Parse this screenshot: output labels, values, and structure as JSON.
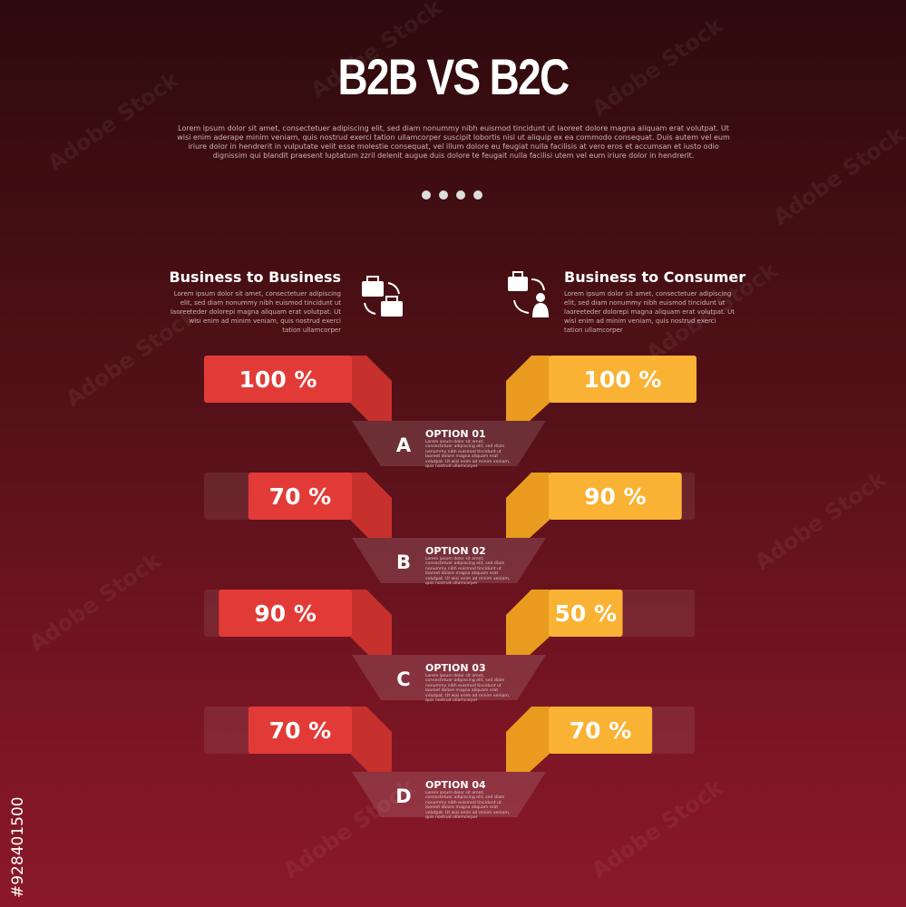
{
  "title": "B2B VS B2C",
  "description": "Lorem ipsum dolor sit amet, consectetuer adipiscing elit, sed diam nonummy nibh euismod tincidunt ut laoreet dolore magna aliquam erat volutpat. Ut wisi enim aderape minim veniam, quis nostrud exerci tation ullamcorper suscipit lobortis nisl ut aliquip ex ea commodo consequat. Duis autem vel eum iriure dolor in hendrerit in vulputate velit esse molestie consequat, vel illum dolore eu feugiat nulla facilisis at vero eros et accumsan et iusto odio dignissim qui blandit praesent luptatum zzril delenit augue duis dolore te feugait nulla facilisi utem vel eum iriure dolor in hendrerit.",
  "left": {
    "heading": "Business to Business",
    "text": "Lorem ipsum dolor sit amet, consectetuer adipiscing elit, sed diam nonummy nibh euismod tincidunt ut laoreeteder dolorepi magna aliquam erat volutpat. Ut wisi enim ad minim veniam, quis nostrud exerci tation ullamcorper"
  },
  "right": {
    "heading": "Business to Consumer",
    "text": "Lorem ipsum dolor sit amet, consectetuer adipiscing elit, sed diam nonummy nibh euismod tincidunt ut laoreeteder dolorepi magna aliquam erat volutpat. Ut wisi enim ad minim veniam, quis nostrud exerci tation ullamcorper"
  },
  "rows": [
    {
      "letter": "A",
      "option": "OPTION 01",
      "text": "Lorem ipsum dolor sit amet, consectetuer adipiscing elit, sed diam nonummy nibh euismod tincidunt ut laoreet dolore magna aliquam erat volutpat. Ut wisi enim ad minim veniam, quis nostrud ullamcorper",
      "left": {
        "value": 100,
        "label": "100 %"
      },
      "right": {
        "value": 100,
        "label": "100 %"
      }
    },
    {
      "letter": "B",
      "option": "OPTION 02",
      "text": "Lorem ipsum dolor sit amet, consectetuer adipiscing elit, sed diam nonummy nibh euismod tincidunt ut laoreet dolore magna aliquam erat volutpat. Ut wisi enim ad minim veniam, quis nostrud ullamcorper",
      "left": {
        "value": 70,
        "label": "70 %"
      },
      "right": {
        "value": 90,
        "label": "90 %"
      }
    },
    {
      "letter": "C",
      "option": "OPTION 03",
      "text": "Lorem ipsum dolor sit amet, consectetuer adipiscing elit, sed diam nonummy nibh euismod tincidunt ut laoreet dolore magna aliquam erat volutpat. Ut wisi enim ad minim veniam, quis nostrud ullamcorper",
      "left": {
        "value": 90,
        "label": "90 %"
      },
      "right": {
        "value": 50,
        "label": "50 %"
      }
    },
    {
      "letter": "D",
      "option": "OPTION 04",
      "text": "Lorem ipsum dolor sit amet, consectetuer adipiscing elit, sed diam nonummy nibh euismod tincidunt ut laoreet dolore magna aliquam erat volutpat. Ut wisi enim ad minim veniam, quis nostrud ullamcorper",
      "left": {
        "value": 70,
        "label": "70 %"
      },
      "right": {
        "value": 70,
        "label": "70 %"
      }
    }
  ],
  "watermark": "Adobe Stock",
  "stock_id": "#928401500"
}
